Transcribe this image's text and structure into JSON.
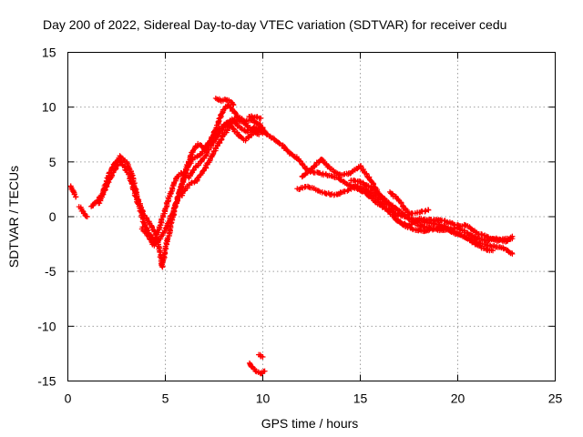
{
  "chart_data": {
    "type": "scatter",
    "title": "Day 200 of 2022, Sidereal Day-to-day VTEC variation (SDTVAR) for receiver cedu",
    "xlabel": "GPS time / hours",
    "ylabel": "SDTVAR / TECUs",
    "xlim": [
      0,
      25
    ],
    "ylim": [
      -15,
      15
    ],
    "xticks": [
      0,
      5,
      10,
      15,
      20,
      25
    ],
    "yticks": [
      -15,
      -10,
      -5,
      0,
      5,
      10,
      15
    ],
    "grid": true,
    "marker": "plus",
    "series": [
      {
        "name": "SDTVAR",
        "color": "#ff0000",
        "segments": [
          [
            [
              0.15,
              2.8
            ],
            [
              0.3,
              2.2
            ],
            [
              0.4,
              1.8
            ]
          ],
          [
            [
              0.6,
              0.9
            ],
            [
              0.8,
              0.4
            ],
            [
              1.0,
              0.0
            ]
          ],
          [
            [
              1.2,
              0.9
            ],
            [
              1.5,
              1.4
            ],
            [
              1.8,
              2.2
            ],
            [
              2.1,
              3.8
            ],
            [
              2.4,
              4.8
            ],
            [
              2.7,
              5.5
            ],
            [
              3.0,
              5.0
            ],
            [
              3.3,
              3.8
            ],
            [
              3.6,
              1.5
            ],
            [
              3.9,
              0.2
            ],
            [
              4.2,
              -0.6
            ],
            [
              4.5,
              -1.5
            ],
            [
              4.7,
              -3.0
            ],
            [
              4.85,
              -4.6
            ],
            [
              5.0,
              -3.0
            ],
            [
              5.2,
              -1.5
            ],
            [
              5.5,
              0.8
            ],
            [
              5.8,
              2.8
            ],
            [
              6.1,
              4.3
            ],
            [
              6.4,
              5.3
            ],
            [
              6.8,
              5.7
            ],
            [
              7.2,
              6.5
            ],
            [
              7.6,
              8.0
            ],
            [
              7.9,
              9.5
            ],
            [
              8.2,
              10.2
            ],
            [
              8.5,
              9.6
            ],
            [
              8.8,
              9.0
            ],
            [
              9.1,
              8.7
            ],
            [
              9.4,
              8.8
            ],
            [
              9.8,
              8.5
            ],
            [
              10.1,
              7.8
            ]
          ],
          [
            [
              1.6,
              1.2
            ],
            [
              1.9,
              2.5
            ],
            [
              2.3,
              4.0
            ],
            [
              2.7,
              5.0
            ],
            [
              3.1,
              4.0
            ],
            [
              3.5,
              1.8
            ],
            [
              3.9,
              -0.6
            ],
            [
              4.2,
              -1.6
            ],
            [
              4.5,
              -2.5
            ],
            [
              4.8,
              -1.8
            ],
            [
              5.2,
              -0.4
            ],
            [
              5.5,
              0.9
            ],
            [
              5.8,
              2.5
            ],
            [
              6.1,
              4.5
            ],
            [
              6.4,
              6.0
            ],
            [
              6.7,
              6.6
            ],
            [
              7.0,
              6.2
            ],
            [
              7.3,
              6.9
            ],
            [
              7.6,
              7.7
            ],
            [
              7.9,
              8.2
            ],
            [
              8.2,
              8.6
            ],
            [
              8.5,
              8.0
            ],
            [
              8.8,
              7.3
            ],
            [
              9.1,
              7.0
            ],
            [
              9.5,
              7.6
            ],
            [
              9.8,
              8.0
            ],
            [
              10.2,
              7.5
            ]
          ],
          [
            [
              3.8,
              -1.0
            ],
            [
              4.1,
              -1.8
            ],
            [
              4.4,
              -2.6
            ],
            [
              4.6,
              -1.5
            ],
            [
              4.9,
              0.1
            ],
            [
              5.2,
              1.8
            ],
            [
              5.5,
              3.3
            ],
            [
              5.8,
              4.0
            ],
            [
              6.2,
              3.6
            ],
            [
              6.6,
              4.6
            ],
            [
              7.0,
              5.4
            ],
            [
              7.4,
              6.6
            ],
            [
              7.8,
              7.7
            ],
            [
              8.1,
              8.3
            ],
            [
              8.4,
              8.9
            ],
            [
              8.8,
              8.2
            ],
            [
              9.2,
              7.7
            ],
            [
              9.6,
              8.2
            ],
            [
              10.0,
              7.6
            ]
          ],
          [
            [
              5.8,
              1.9
            ],
            [
              6.2,
              2.9
            ],
            [
              6.6,
              3.3
            ],
            [
              7.0,
              4.3
            ],
            [
              7.4,
              5.6
            ],
            [
              7.8,
              6.9
            ],
            [
              8.2,
              8.0
            ],
            [
              8.6,
              9.0
            ],
            [
              9.0,
              8.6
            ],
            [
              9.4,
              8.0
            ],
            [
              9.8,
              7.5
            ]
          ],
          [
            [
              7.6,
              10.8
            ],
            [
              7.9,
              10.6
            ],
            [
              8.2,
              10.7
            ],
            [
              8.5,
              10.2
            ]
          ],
          [
            [
              9.3,
              9.2
            ],
            [
              9.6,
              9.1
            ],
            [
              9.9,
              9.0
            ]
          ],
          [
            [
              9.3,
              -13.4
            ],
            [
              9.6,
              -14.0
            ],
            [
              9.9,
              -14.3
            ],
            [
              10.1,
              -14.1
            ]
          ],
          [
            [
              9.8,
              -12.6
            ],
            [
              10.0,
              -12.8
            ]
          ],
          [
            [
              10.2,
              7.6
            ],
            [
              10.6,
              7.0
            ],
            [
              11.0,
              6.5
            ],
            [
              11.4,
              5.8
            ],
            [
              11.8,
              5.3
            ],
            [
              12.3,
              4.2
            ],
            [
              12.8,
              4.0
            ],
            [
              13.3,
              3.8
            ],
            [
              13.8,
              3.6
            ],
            [
              14.3,
              3.0
            ],
            [
              14.8,
              2.6
            ],
            [
              15.3,
              2.2
            ],
            [
              15.8,
              1.3
            ],
            [
              16.3,
              0.7
            ],
            [
              16.8,
              0.3
            ],
            [
              17.3,
              0.0
            ],
            [
              17.8,
              -0.3
            ],
            [
              18.3,
              -0.5
            ],
            [
              18.8,
              -0.6
            ],
            [
              19.3,
              -0.9
            ],
            [
              19.8,
              -1.5
            ],
            [
              20.3,
              -1.8
            ],
            [
              20.8,
              -2.2
            ],
            [
              21.3,
              -2.5
            ],
            [
              21.8,
              -2.7
            ],
            [
              22.3,
              -2.8
            ],
            [
              22.8,
              -3.4
            ]
          ],
          [
            [
              12.0,
              3.6
            ],
            [
              12.5,
              4.4
            ],
            [
              13.0,
              5.3
            ],
            [
              13.5,
              4.3
            ],
            [
              14.0,
              3.8
            ],
            [
              14.5,
              4.0
            ],
            [
              15.0,
              4.6
            ],
            [
              15.5,
              3.4
            ],
            [
              16.0,
              2.0
            ],
            [
              16.5,
              1.2
            ],
            [
              17.0,
              0.5
            ],
            [
              17.5,
              -0.2
            ],
            [
              18.0,
              -0.8
            ],
            [
              18.5,
              -1.0
            ],
            [
              19.0,
              -1.2
            ],
            [
              19.5,
              -1.2
            ],
            [
              20.0,
              -1.0
            ],
            [
              20.5,
              -1.5
            ],
            [
              21.0,
              -2.0
            ],
            [
              21.5,
              -2.2
            ],
            [
              22.0,
              -2.0
            ],
            [
              22.5,
              -2.3
            ],
            [
              22.8,
              -1.8
            ]
          ],
          [
            [
              11.8,
              2.5
            ],
            [
              12.3,
              2.8
            ],
            [
              12.8,
              2.4
            ],
            [
              13.3,
              2.1
            ],
            [
              13.8,
              2.0
            ],
            [
              14.3,
              2.4
            ],
            [
              14.8,
              2.8
            ],
            [
              15.3,
              2.5
            ],
            [
              15.8,
              1.8
            ],
            [
              16.3,
              0.8
            ],
            [
              16.8,
              -0.2
            ],
            [
              17.3,
              -0.9
            ],
            [
              17.8,
              -1.2
            ],
            [
              18.3,
              -1.3
            ],
            [
              18.8,
              -1.1
            ],
            [
              19.3,
              -1.0
            ],
            [
              19.8,
              -1.3
            ],
            [
              20.3,
              -1.8
            ],
            [
              20.8,
              -2.4
            ],
            [
              21.3,
              -2.9
            ],
            [
              21.8,
              -3.1
            ]
          ],
          [
            [
              14.5,
              3.3
            ],
            [
              15.0,
              3.2
            ],
            [
              15.5,
              2.7
            ],
            [
              16.0,
              1.9
            ],
            [
              16.5,
              1.0
            ],
            [
              17.0,
              -0.5
            ],
            [
              17.5,
              -0.8
            ],
            [
              18.0,
              -0.2
            ],
            [
              18.5,
              -0.3
            ],
            [
              19.0,
              -0.3
            ],
            [
              19.5,
              -0.5
            ],
            [
              20.0,
              -0.8
            ],
            [
              20.5,
              -0.8
            ],
            [
              21.0,
              -1.5
            ],
            [
              21.5,
              -1.8
            ],
            [
              22.0,
              -2.2
            ],
            [
              22.5,
              -2.0
            ],
            [
              22.8,
              -2.0
            ]
          ],
          [
            [
              16.5,
              2.2
            ],
            [
              17.0,
              1.5
            ],
            [
              17.5,
              0.2
            ],
            [
              18.0,
              0.4
            ],
            [
              18.5,
              0.6
            ]
          ]
        ]
      }
    ]
  }
}
